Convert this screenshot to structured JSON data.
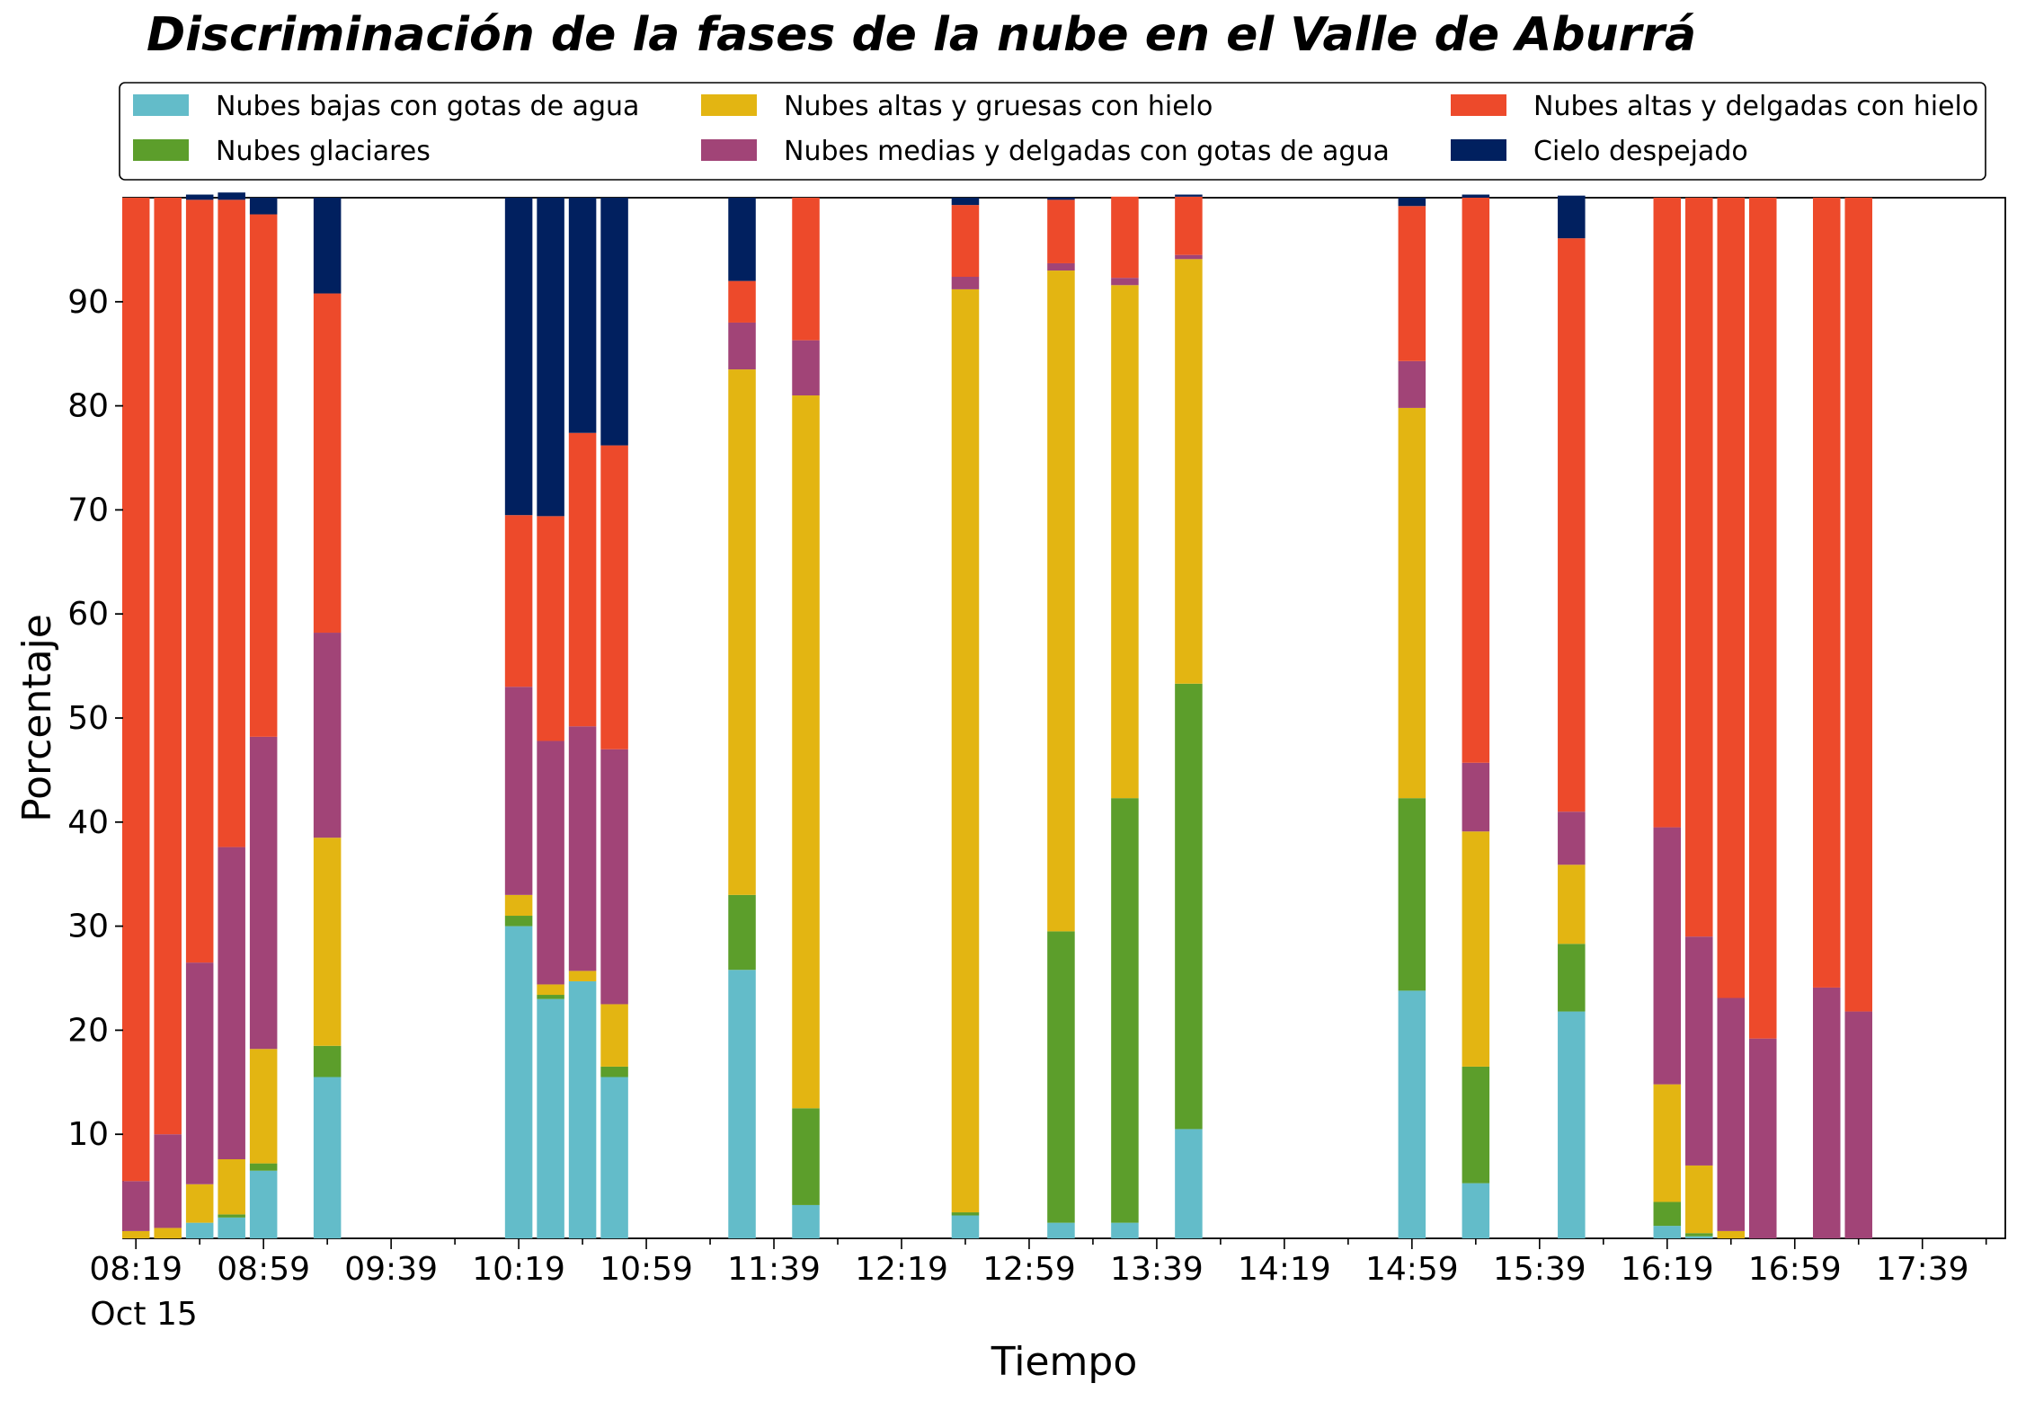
{
  "chart_data": {
    "type": "bar",
    "stacked": true,
    "title": "Discriminación de la fases de la nube en el Valle de Aburrá",
    "xlabel": "Tiempo",
    "ylabel": "Porcentaje",
    "ylim": [
      0,
      100
    ],
    "xlim": [
      "08:15",
      "18:05"
    ],
    "date_label": "Oct 15",
    "x_ticks": [
      "08:19",
      "08:59",
      "09:39",
      "10:19",
      "10:59",
      "11:39",
      "12:19",
      "12:59",
      "13:39",
      "14:19",
      "14:59",
      "15:39",
      "16:19",
      "16:59",
      "17:39"
    ],
    "y_ticks": [
      10,
      20,
      30,
      40,
      50,
      60,
      70,
      80,
      90
    ],
    "grid": false,
    "legend_position": "top",
    "bar_width_minutes": 8.6,
    "times": [
      "08:19",
      "08:29",
      "08:39",
      "08:49",
      "08:59",
      "09:19",
      "10:19",
      "10:29",
      "10:39",
      "10:49",
      "11:29",
      "11:49",
      "12:39",
      "13:09",
      "13:29",
      "13:49",
      "14:59",
      "15:19",
      "15:49",
      "16:19",
      "16:29",
      "16:39",
      "16:49",
      "17:09",
      "17:19"
    ],
    "series": [
      {
        "name": "Nubes bajas con gotas de agua",
        "color": "#63bcc9",
        "values": [
          0,
          0,
          1.5,
          2,
          6.5,
          15.5,
          30,
          23,
          24.7,
          15.5,
          25.8,
          3.2,
          2.2,
          1.5,
          1.5,
          10.5,
          23.8,
          5.3,
          21.8,
          1.2,
          0.2,
          0,
          0,
          0,
          0
        ]
      },
      {
        "name": "Nubes glaciares",
        "color": "#5c9e2b",
        "values": [
          0,
          0,
          0,
          0.3,
          0.7,
          3,
          1,
          0.4,
          0,
          1,
          7.2,
          9.3,
          0.3,
          28,
          40.8,
          42.8,
          18.5,
          11.2,
          6.5,
          2.3,
          0.3,
          0,
          0,
          0,
          0
        ]
      },
      {
        "name": "Nubes altas y gruesas con hielo",
        "color": "#e3b512",
        "values": [
          0.7,
          1,
          3.7,
          5.3,
          11,
          20,
          2,
          1,
          1,
          6,
          50.5,
          68.5,
          88.7,
          63.5,
          49.3,
          40.8,
          37.5,
          22.6,
          7.6,
          11.3,
          6.5,
          0.7,
          0,
          0,
          0
        ]
      },
      {
        "name": "Nubes medias y delgadas con gotas de agua",
        "color": "#a14477",
        "values": [
          4.8,
          9,
          21.3,
          30,
          30,
          19.7,
          20,
          23.4,
          23.5,
          24.5,
          4.5,
          5.3,
          1.2,
          0.7,
          0.7,
          0.4,
          4.5,
          6.6,
          5.1,
          24.7,
          22,
          22.4,
          19.2,
          24.1,
          21.8
        ]
      },
      {
        "name": "Nubes altas y delgadas con hielo",
        "color": "#ed4a2b",
        "values": [
          94.5,
          90,
          73.3,
          62.2,
          50.2,
          32.6,
          16.5,
          21.6,
          28.2,
          29.2,
          4,
          13.7,
          6.9,
          6.1,
          7.8,
          5.6,
          14.9,
          54.3,
          55.1,
          60.5,
          71,
          76.9,
          80.8,
          75.9,
          78.2
        ]
      },
      {
        "name": "Cielo despejado",
        "color": "#01205f",
        "values": [
          0,
          0,
          0.5,
          0.7,
          1.6,
          9.2,
          30.5,
          30.6,
          22.6,
          23.8,
          8,
          0,
          0.7,
          0.2,
          0,
          0.2,
          0.8,
          0.3,
          4.1,
          0,
          0,
          0,
          0,
          0,
          0
        ]
      }
    ]
  }
}
